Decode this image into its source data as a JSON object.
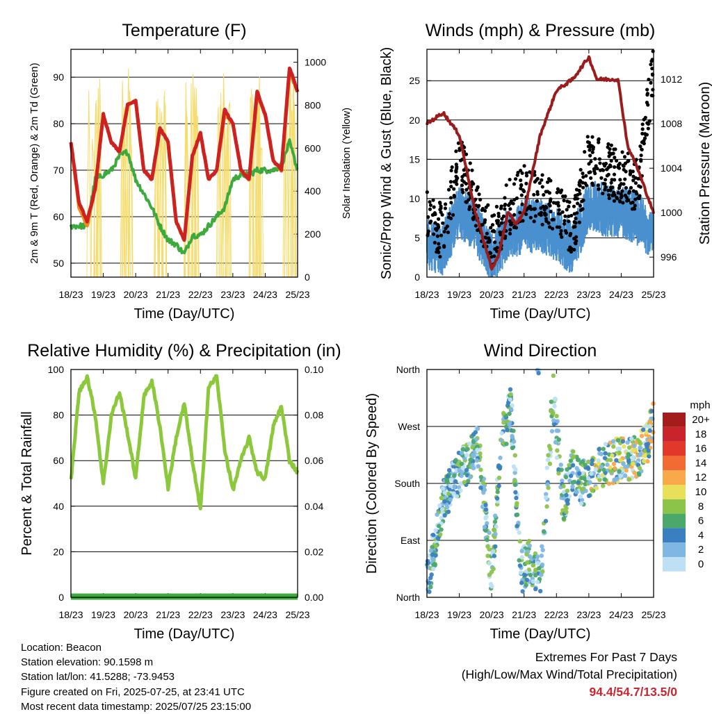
{
  "chart_data": [
    {
      "type": "line",
      "title": "Temperature (F)",
      "xlabel": "Time (Day/UTC)",
      "ylabel": "2m & 9m T (Red, Orange) & 2m Td (Green)",
      "ylabel_right": "Solar Insolation (Yellow)",
      "x_ticks": [
        "18/23",
        "19/23",
        "20/23",
        "21/23",
        "22/23",
        "23/23",
        "24/23",
        "25/23"
      ],
      "x": [
        0,
        0.25,
        0.5,
        0.75,
        1,
        1.25,
        1.5,
        1.75,
        2,
        2.25,
        2.5,
        2.75,
        3,
        3.25,
        3.5,
        3.75,
        4,
        4.25,
        4.5,
        4.75,
        5,
        5.25,
        5.5,
        5.75,
        6,
        6.25,
        6.5,
        6.75,
        7
      ],
      "ylim": [
        47,
        96
      ],
      "y_ticks": [
        50,
        60,
        70,
        80,
        90
      ],
      "ylim_right": [
        0,
        1060
      ],
      "y_ticks_right": [
        0,
        200,
        400,
        600,
        800,
        1000
      ],
      "series": [
        {
          "color": "#cc2222",
          "axis": "left",
          "values": [
            76,
            63,
            59,
            66,
            82,
            76,
            74,
            84,
            85,
            70,
            68,
            79,
            76,
            59,
            55,
            73,
            78,
            68,
            70,
            83,
            80,
            70,
            68,
            87,
            82,
            72,
            70,
            92,
            87
          ]
        },
        {
          "color": "#f08c1e",
          "axis": "left",
          "values": [
            76,
            62,
            58,
            66,
            82,
            76,
            74,
            84,
            85,
            70,
            68,
            79,
            76,
            59,
            55,
            73,
            78,
            68,
            70,
            82,
            80,
            70,
            68,
            86,
            82,
            72,
            70,
            91,
            87
          ]
        },
        {
          "color": "#3caa3c",
          "axis": "left",
          "values": [
            58,
            58,
            58,
            68,
            69,
            70,
            73,
            74,
            68,
            65,
            62,
            58,
            55,
            54,
            52,
            56,
            56,
            58,
            60,
            62,
            68,
            69,
            69,
            70,
            70,
            70,
            71,
            76,
            70
          ]
        },
        {
          "color": "#f5dc6e",
          "axis": "right",
          "values": [
            0,
            0,
            0,
            0,
            0,
            1000,
            960,
            0,
            0,
            1010,
            990,
            0,
            0,
            960,
            1000,
            0,
            0,
            960,
            1000,
            0,
            0,
            980,
            1000,
            0,
            0,
            1000,
            980,
            0,
            0
          ]
        }
      ]
    },
    {
      "type": "scatter",
      "title": "Winds (mph) & Pressure (mb)",
      "xlabel": "Time (Day/UTC)",
      "ylabel": "Sonic/Prop Wind & Gust (Blue, Black)",
      "ylabel_right": "Station Pressure (Maroon)",
      "x_ticks": [
        "18/23",
        "19/23",
        "20/23",
        "21/23",
        "22/23",
        "23/23",
        "24/23",
        "25/23"
      ],
      "ylim": [
        0,
        29
      ],
      "y_ticks": [
        0,
        5,
        10,
        15,
        20,
        25
      ],
      "ylim_right": [
        994.2,
        1014.7
      ],
      "y_ticks_right": [
        996,
        1000,
        1004,
        1008,
        1012
      ],
      "pressure": {
        "color": "#9a1c1c",
        "x": [
          0,
          0.5,
          1,
          1.5,
          2,
          2.2,
          2.5,
          2.75,
          3,
          3.5,
          4,
          4.5,
          5,
          5.25,
          5.6,
          5.9,
          6.2,
          6.5,
          6.75,
          7
        ],
        "values": [
          1008,
          1009,
          1007,
          1000,
          995,
          996,
          1000,
          999,
          1000,
          1007,
          1011,
          1012,
          1014,
          1012,
          1012,
          1012,
          1006,
          1004,
          1002,
          1000
        ]
      },
      "wind": {
        "color": "#4a90cf",
        "x": [
          0,
          0.5,
          1,
          1.5,
          2,
          2.5,
          3,
          3.5,
          4,
          4.5,
          5,
          5.5,
          6,
          6.5,
          7
        ],
        "values": [
          4,
          3,
          8,
          6,
          2,
          5,
          6,
          6,
          5,
          3,
          9,
          8,
          8,
          7,
          5
        ]
      },
      "gust": {
        "color": "#000000",
        "x": [
          0,
          0.5,
          1,
          1.5,
          2,
          2.5,
          3,
          3.5,
          4,
          4.5,
          5,
          5.5,
          6,
          6.5,
          7
        ],
        "values": [
          7,
          5,
          14,
          9,
          4,
          8,
          10,
          9,
          8,
          5,
          15,
          13,
          12,
          11,
          26
        ]
      }
    },
    {
      "type": "line",
      "title": "Relative Humidity (%) & Precipitation (in)",
      "xlabel": "Time (Day/UTC)",
      "ylabel": "Percent & Total Rainfall",
      "x_ticks": [
        "18/23",
        "19/23",
        "20/23",
        "21/23",
        "22/23",
        "23/23",
        "24/23",
        "25/23"
      ],
      "ylim": [
        0,
        100
      ],
      "y_ticks": [
        0,
        20,
        40,
        60,
        80,
        100
      ],
      "ylim_right": [
        0,
        0.1
      ],
      "y_ticks_right": [
        "0.00",
        "0.02",
        "0.04",
        "0.06",
        "0.08",
        "0.10"
      ],
      "x": [
        0,
        0.25,
        0.5,
        0.75,
        1,
        1.25,
        1.5,
        1.75,
        2,
        2.25,
        2.5,
        2.75,
        3,
        3.25,
        3.5,
        3.75,
        4,
        4.25,
        4.5,
        4.75,
        5,
        5.25,
        5.5,
        5.75,
        6,
        6.25,
        6.5,
        6.75,
        7
      ],
      "series": [
        {
          "color": "#8cc83c",
          "values": [
            51,
            90,
            97,
            80,
            50,
            80,
            90,
            72,
            52,
            88,
            95,
            75,
            48,
            70,
            85,
            60,
            38,
            92,
            97,
            65,
            47,
            60,
            70,
            55,
            52,
            75,
            84,
            60,
            55
          ]
        },
        {
          "color": "#3caa3c",
          "values": [
            0,
            0,
            0,
            0,
            0,
            0,
            0,
            0,
            0,
            0,
            0,
            0,
            0,
            0,
            0,
            0,
            0,
            0,
            0,
            0,
            0,
            0,
            0,
            0,
            0,
            0,
            0,
            0,
            0
          ]
        }
      ]
    },
    {
      "type": "scatter",
      "title": "Wind Direction",
      "xlabel": "Time (Day/UTC)",
      "ylabel": "Direction (Colored By Speed)",
      "x_ticks": [
        "18/23",
        "19/23",
        "20/23",
        "21/23",
        "22/23",
        "23/23",
        "24/23",
        "25/23"
      ],
      "ylim": [
        0,
        360
      ],
      "y_ticks": [
        "North",
        "East",
        "South",
        "West",
        "North"
      ],
      "legend_title": "mph",
      "legend_labels": [
        "20+",
        "18",
        "16",
        "14",
        "12",
        "10",
        "8",
        "6",
        "4",
        "2",
        "0"
      ],
      "legend_colors": [
        "#a51c1c",
        "#c9232b",
        "#e0392c",
        "#f26b33",
        "#f9a84a",
        "#e8e05a",
        "#8cc44a",
        "#4aa86a",
        "#3a7fbf",
        "#7fb7e3",
        "#bde0f5"
      ],
      "legend_placement": "right",
      "x": [
        0,
        0.5,
        0.8,
        1.2,
        1.6,
        2,
        2.3,
        2.6,
        2.9,
        3.2,
        3.5,
        3.9,
        4.2,
        4.5,
        4.8,
        5.2,
        5.6,
        6,
        6.4,
        6.8,
        7
      ],
      "values": [
        20,
        150,
        180,
        210,
        240,
        30,
        250,
        300,
        40,
        60,
        20,
        320,
        150,
        200,
        180,
        200,
        210,
        220,
        220,
        240,
        290
      ]
    }
  ],
  "info": {
    "location": "Location: Beacon",
    "elevation": "Station elevation: 90.1598 m",
    "latlon": "Station lat/lon: 41.5288; -73.9453",
    "created": "Figure created on Fri, 2025-07-25, at 23:41 UTC",
    "recent": "Most recent data timestamp: 2025/07/25 23:15:00"
  },
  "extremes": {
    "title": "Extremes For Past 7 Days",
    "subtitle": "(High/Low/Max Wind/Total Precipitation)",
    "values": "94.4/54.7/13.5/0"
  }
}
